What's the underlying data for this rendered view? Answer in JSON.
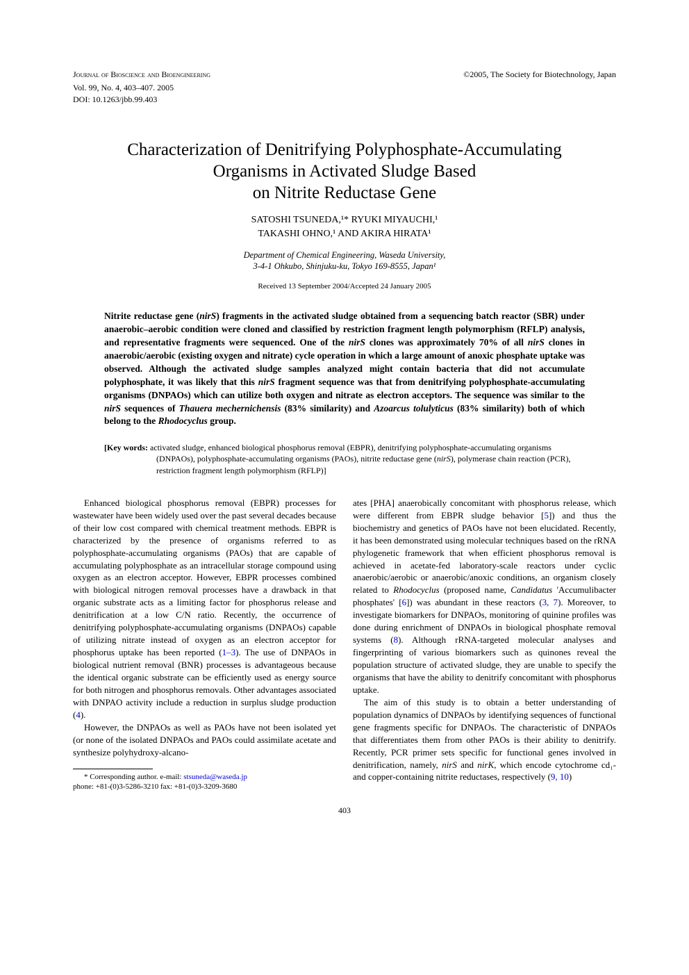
{
  "header": {
    "journal": "Journal of Bioscience and Bioengineering",
    "volume_line": "Vol. 99, No. 4, 403–407. 2005",
    "doi_line": "DOI: 10.1263/jbb.99.403",
    "copyright": "©2005, The Society for Biotechnology, Japan"
  },
  "title": {
    "line1": "Characterization of Denitrifying Polyphosphate-Accumulating",
    "line2": "Organisms in Activated Sludge Based",
    "line3": "on Nitrite Reductase Gene"
  },
  "authors": {
    "line1": "SATOSHI TSUNEDA,¹* RYUKI MIYAUCHI,¹",
    "line2": "TAKASHI OHNO,¹ AND AKIRA HIRATA¹"
  },
  "affiliation": {
    "line1": "Department of Chemical Engineering, Waseda University,",
    "line2": "3-4-1 Ohkubo, Shinjuku-ku, Tokyo 169-8555, Japan¹"
  },
  "dates": "Received 13 September 2004/Accepted 24 January 2005",
  "abstract": {
    "part1": "Nitrite reductase gene (",
    "nirS1": "nirS",
    "part2": ") fragments in the activated sludge obtained from a sequencing batch reactor (SBR) under anaerobic–aerobic condition were cloned and classified by restriction fragment length polymorphism (RFLP) analysis, and representative fragments were sequenced. One of the ",
    "nirS2": "nirS",
    "part3": " clones was approximately 70% of all ",
    "nirS3": "nirS",
    "part4": " clones in anaerobic/aerobic (existing oxygen and nitrate) cycle operation in which a large amount of anoxic phosphate uptake was observed. Although the activated sludge samples analyzed might contain bacteria that did not accumulate polyphosphate, it was likely that this ",
    "nirS4": "nirS",
    "part5": " fragment sequence was that from denitrifying polyphosphate-accumulating organisms (DNPAOs) which can utilize both oxygen and nitrate as electron acceptors. The sequence was similar to the ",
    "nirS5": "nirS",
    "part6": " sequences of ",
    "thauera": "Thauera mechernichensis",
    "part7": " (83% similarity) and ",
    "azoarcus": "Azoarcus tolulyticus",
    "part8": " (83% similarity) both of which belong to the ",
    "rhodo": "Rhodocyclus",
    "part9": " group."
  },
  "keywords": {
    "label": "[Key words:",
    "text": " activated sludge, enhanced biological phosphorus removal (EBPR), denitrifying polyphosphate-accumulating organisms (DNPAOs), polyphosphate-accumulating organisms (PAOs), nitrite reductase gene (",
    "nirS": "nirS",
    "text2": "), polymerase chain reaction (PCR), restriction fragment length polymorphism (RFLP)]"
  },
  "body": {
    "col1": {
      "p1_a": "Enhanced biological phosphorus removal (EBPR) processes for wastewater have been widely used over the past several decades because of their low cost compared with chemical treatment methods. EBPR is characterized by the presence of organisms referred to as polyphosphate-accumulating organisms (PAOs) that are capable of accumulating polyphosphate as an intracellular storage compound using oxygen as an electron acceptor. However, EBPR processes combined with biological nitrogen removal processes have a drawback in that organic substrate acts as a limiting factor for phosphorus release and denitrification at a low C/N ratio. Recently, the occurrence of denitrifying polyphosphate-accumulating organisms (DNPAOs) capable of utilizing nitrate instead of oxygen as an electron acceptor for phosphorus uptake has been reported (",
      "ref1": "1–3",
      "p1_b": "). The use of DNPAOs in biological nutrient removal (BNR) processes is advantageous because the identical organic substrate can be efficiently used as energy source for both nitrogen and phosphorus removals. Other advantages associated with DNPAO activity include a reduction in surplus sludge production (",
      "ref4": "4",
      "p1_c": ").",
      "p2": "However, the DNPAOs as well as PAOs have not been isolated yet (or none of the isolated DNPAOs and PAOs could assimilate acetate and synthesize polyhydroxy-alcano-"
    },
    "col2": {
      "p1_a": "ates [PHA] anaerobically concomitant with phosphorus release, which were different from EBPR sludge behavior [",
      "ref5": "5",
      "p1_b": "]) and thus the biochemistry and genetics of PAOs have not been elucidated. Recently, it has been demonstrated using molecular techniques based on the rRNA phylogenetic framework that when efficient phosphorus removal is achieved in acetate-fed laboratory-scale reactors under cyclic anaerobic/aerobic or anaerobic/anoxic conditions, an organism closely related to ",
      "rhodo": "Rhodocyclus",
      "p1_c": " (proposed name, ",
      "cand": "Candidatus",
      "p1_d": " 'Accumulibacter phosphates' [",
      "ref6": "6",
      "p1_e": "]) was abundant in these reactors (",
      "ref37": "3, 7",
      "p1_f": "). Moreover, to investigate biomarkers for DNPAOs, monitoring of quinine profiles was done during enrichment of DNPAOs in biological phosphate removal systems (",
      "ref8": "8",
      "p1_g": "). Although rRNA-targeted molecular analyses and fingerprinting of various biomarkers such as quinones reveal the population structure of activated sludge, they are unable to specify the organisms that have the ability to denitrify concomitant with phosphorus uptake.",
      "p2_a": "The aim of this study is to obtain a better understanding of population dynamics of DNPAOs by identifying sequences of functional gene fragments specific for DNPAOs. The characteristic of DNPAOs that differentiates them from other PAOs is their ability to denitrify. Recently, PCR primer sets specific for functional genes involved in denitrification, namely, ",
      "nirS": "nirS",
      "p2_b": " and ",
      "nirK": "nirK",
      "p2_c": ", which encode cytochrome cd₁- and copper-containing nitrite reductases, respectively (",
      "ref910": "9, 10",
      "p2_d": ")"
    }
  },
  "footnote": {
    "line1_a": "* Corresponding author. e-mail: ",
    "email": "stsuneda@waseda.jp",
    "line2": "phone: +81-(0)3-5286-3210  fax: +81-(0)3-3209-3680"
  },
  "page_number": "403"
}
